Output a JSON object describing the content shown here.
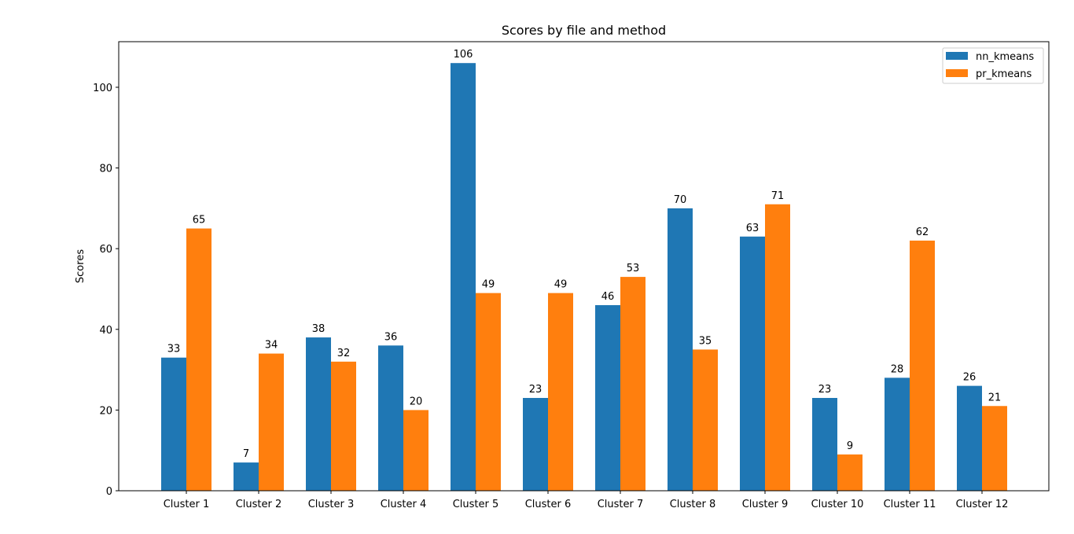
{
  "chart_data": {
    "type": "bar",
    "title": "Scores by file and method",
    "xlabel": "",
    "ylabel": "Scores",
    "categories": [
      "Cluster 1",
      "Cluster 2",
      "Cluster 3",
      "Cluster 4",
      "Cluster 5",
      "Cluster 6",
      "Cluster 7",
      "Cluster 8",
      "Cluster 9",
      "Cluster 10",
      "Cluster 11",
      "Cluster 12"
    ],
    "series": [
      {
        "name": "nn_kmeans",
        "color": "#1f77b4",
        "values": [
          33,
          7,
          38,
          36,
          106,
          23,
          46,
          70,
          63,
          23,
          28,
          26
        ]
      },
      {
        "name": "pr_kmeans",
        "color": "#ff7f0e",
        "values": [
          65,
          34,
          32,
          20,
          49,
          49,
          53,
          35,
          71,
          9,
          62,
          21
        ]
      }
    ],
    "ylim": [
      0,
      111.3
    ],
    "yticks": [
      0,
      20,
      40,
      60,
      80,
      100
    ],
    "grid": false,
    "legend_position": "top-right"
  }
}
